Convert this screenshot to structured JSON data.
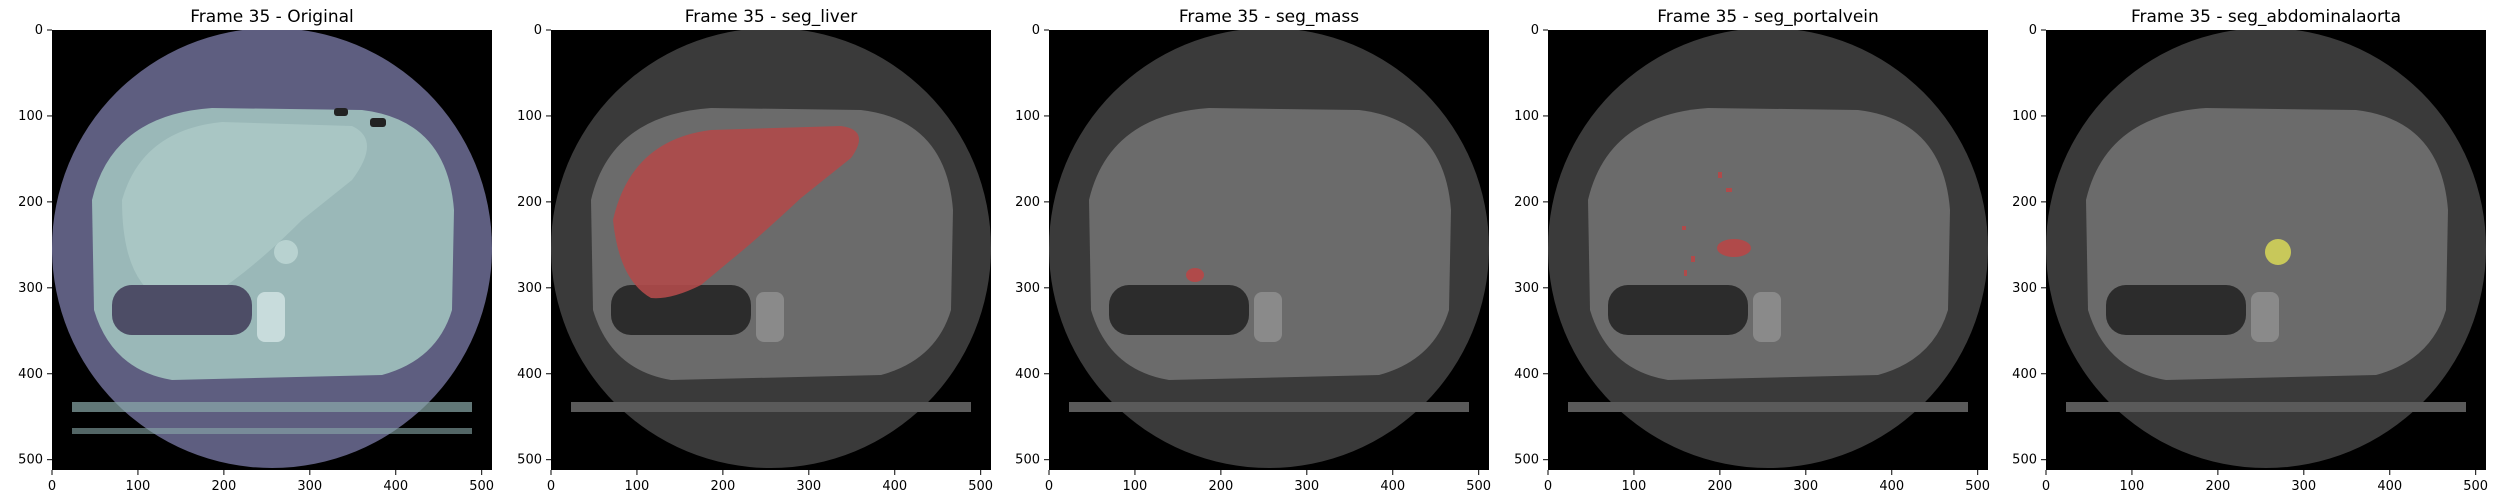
{
  "colors": {
    "figure_background": "#ffffff",
    "image_outside": "#000000",
    "original_scan_body": "#9ab8b8",
    "original_scan_ring": "#5e5e80",
    "gray_scan_body": "#6b6b6b",
    "gray_scan_ring": "#3a3a3a",
    "mask_red": "#b04a4a",
    "mask_yellow": "#c8c85a"
  },
  "axis": {
    "x_ticks": [
      "0",
      "100",
      "200",
      "300",
      "400",
      "500"
    ],
    "y_ticks": [
      "0",
      "100",
      "200",
      "300",
      "400",
      "500"
    ],
    "range": [
      0,
      512
    ]
  },
  "panels": [
    {
      "title": "Frame 35 - Original",
      "mask": "none"
    },
    {
      "title": "Frame 35 - seg_liver",
      "mask": "liver"
    },
    {
      "title": "Frame 35 - seg_mass",
      "mask": "mass"
    },
    {
      "title": "Frame 35 - seg_portalvein",
      "mask": "portalvein"
    },
    {
      "title": "Frame 35 - seg_abdominalaorta",
      "mask": "abdominalaorta"
    }
  ]
}
